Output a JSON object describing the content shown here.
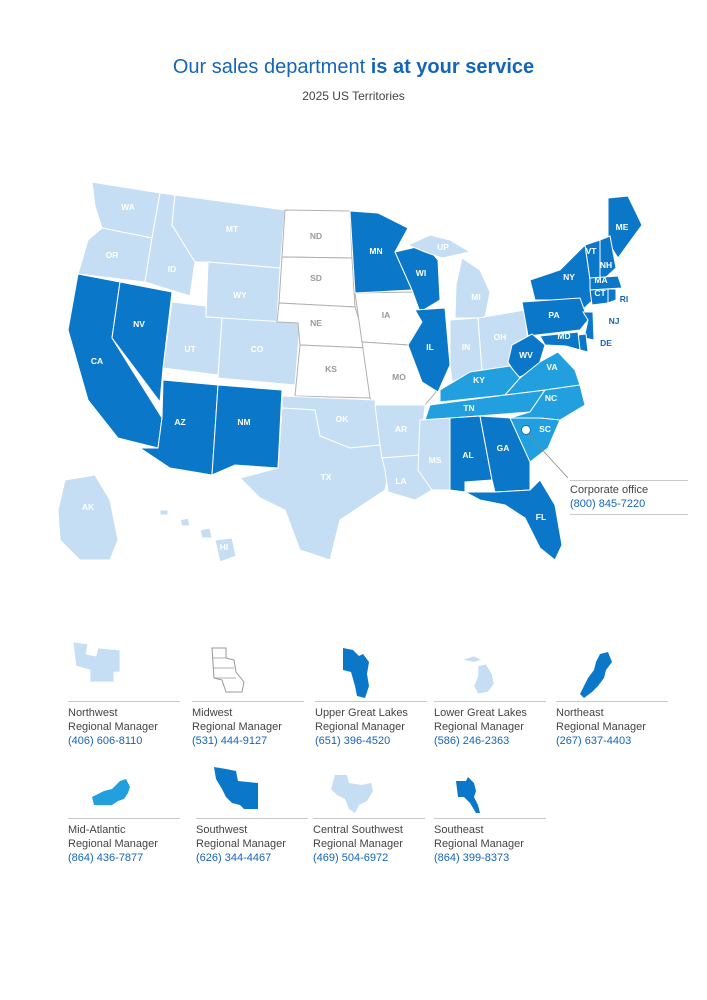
{
  "header": {
    "title_regular": "Our sales department",
    "title_bold": "is at your service",
    "subtitle": "2025 US Territories"
  },
  "colors": {
    "light": "#c5def3",
    "mid": "#219fde",
    "dark": "#0a77c9",
    "white": "#ffffff",
    "accent_text": "#1565b8"
  },
  "map": {
    "states": [
      {
        "abbr": "WA",
        "region": "northwest"
      },
      {
        "abbr": "OR",
        "region": "northwest"
      },
      {
        "abbr": "ID",
        "region": "northwest"
      },
      {
        "abbr": "MT",
        "region": "northwest"
      },
      {
        "abbr": "WY",
        "region": "northwest"
      },
      {
        "abbr": "UT",
        "region": "northwest"
      },
      {
        "abbr": "CO",
        "region": "northwest"
      },
      {
        "abbr": "ND",
        "region": "midwest"
      },
      {
        "abbr": "SD",
        "region": "midwest"
      },
      {
        "abbr": "NE",
        "region": "midwest"
      },
      {
        "abbr": "KS",
        "region": "midwest"
      },
      {
        "abbr": "IA",
        "region": "midwest"
      },
      {
        "abbr": "MO",
        "region": "midwest"
      },
      {
        "abbr": "MN",
        "region": "upper_great_lakes"
      },
      {
        "abbr": "WI",
        "region": "upper_great_lakes"
      },
      {
        "abbr": "IL",
        "region": "upper_great_lakes"
      },
      {
        "abbr": "UP",
        "region": "lower_great_lakes"
      },
      {
        "abbr": "MI",
        "region": "lower_great_lakes"
      },
      {
        "abbr": "IN",
        "region": "lower_great_lakes"
      },
      {
        "abbr": "OH",
        "region": "lower_great_lakes"
      },
      {
        "abbr": "ME",
        "region": "northeast"
      },
      {
        "abbr": "VT",
        "region": "northeast"
      },
      {
        "abbr": "NH",
        "region": "northeast"
      },
      {
        "abbr": "NY",
        "region": "northeast"
      },
      {
        "abbr": "MA",
        "region": "northeast"
      },
      {
        "abbr": "CT",
        "region": "northeast"
      },
      {
        "abbr": "RI",
        "region": "northeast"
      },
      {
        "abbr": "PA",
        "region": "northeast"
      },
      {
        "abbr": "NJ",
        "region": "northeast"
      },
      {
        "abbr": "DE",
        "region": "northeast"
      },
      {
        "abbr": "MD",
        "region": "northeast"
      },
      {
        "abbr": "WV",
        "region": "northeast"
      },
      {
        "abbr": "KY",
        "region": "mid_atlantic"
      },
      {
        "abbr": "TN",
        "region": "mid_atlantic"
      },
      {
        "abbr": "VA",
        "region": "mid_atlantic"
      },
      {
        "abbr": "NC",
        "region": "mid_atlantic"
      },
      {
        "abbr": "SC",
        "region": "mid_atlantic"
      },
      {
        "abbr": "CA",
        "region": "southwest"
      },
      {
        "abbr": "NV",
        "region": "southwest"
      },
      {
        "abbr": "AZ",
        "region": "southwest"
      },
      {
        "abbr": "NM",
        "region": "southwest"
      },
      {
        "abbr": "TX",
        "region": "central_southwest"
      },
      {
        "abbr": "OK",
        "region": "central_southwest"
      },
      {
        "abbr": "AR",
        "region": "central_southwest"
      },
      {
        "abbr": "LA",
        "region": "central_southwest"
      },
      {
        "abbr": "MS",
        "region": "central_southwest"
      },
      {
        "abbr": "AL",
        "region": "southeast"
      },
      {
        "abbr": "GA",
        "region": "southeast"
      },
      {
        "abbr": "FL",
        "region": "southeast"
      },
      {
        "abbr": "AK",
        "region": "central_southwest"
      },
      {
        "abbr": "HI",
        "region": "central_southwest"
      }
    ]
  },
  "corporate_office": {
    "label": "Corporate office",
    "phone": "(800) 845-7220"
  },
  "regions": [
    {
      "id": "northwest",
      "name": "Northwest",
      "role": "Regional Manager",
      "phone": "(406) 606-8110",
      "icon": "northwest-region-icon",
      "color": "light"
    },
    {
      "id": "midwest",
      "name": "Midwest",
      "role": "Regional Manager",
      "phone": "(531) 444-9127",
      "icon": "midwest-region-icon",
      "color": "white"
    },
    {
      "id": "upper_great_lakes",
      "name": "Upper Great Lakes",
      "role": "Regional Manager",
      "phone": "(651) 396-4520",
      "icon": "upper-great-lakes-region-icon",
      "color": "dark"
    },
    {
      "id": "lower_great_lakes",
      "name": "Lower Great Lakes",
      "role": "Regional Manager",
      "phone": "(586) 246-2363",
      "icon": "lower-great-lakes-region-icon",
      "color": "light"
    },
    {
      "id": "northeast",
      "name": "Northeast",
      "role": "Regional Manager",
      "phone": "(267) 637-4403",
      "icon": "northeast-region-icon",
      "color": "dark"
    },
    {
      "id": "mid_atlantic",
      "name": "Mid-Atlantic",
      "role": "Regional Manager",
      "phone": "(864) 436-7877",
      "icon": "mid-atlantic-region-icon",
      "color": "mid"
    },
    {
      "id": "southwest",
      "name": "Southwest",
      "role": "Regional Manager",
      "phone": "(626) 344-4467",
      "icon": "southwest-region-icon",
      "color": "dark"
    },
    {
      "id": "central_southwest",
      "name": "Central Southwest",
      "role": "Regional Manager",
      "phone": "(469) 504-6972",
      "icon": "central-southwest-region-icon",
      "color": "light"
    },
    {
      "id": "southeast",
      "name": "Southeast",
      "role": "Regional Manager",
      "phone": "(864) 399-8373",
      "icon": "southeast-region-icon",
      "color": "dark"
    }
  ]
}
